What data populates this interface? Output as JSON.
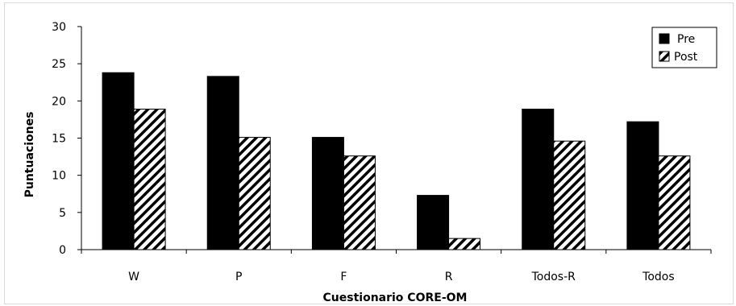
{
  "chart_data": {
    "type": "bar",
    "title": "",
    "xlabel": "Cuestionario CORE-OM",
    "ylabel": "Puntuaciones",
    "ylim": [
      0,
      30
    ],
    "yticks": [
      "0",
      "5",
      "10",
      "15",
      "20",
      "25",
      "30"
    ],
    "categories": [
      "W",
      "P",
      "F",
      "R",
      "Todos-R",
      "Todos"
    ],
    "series": [
      {
        "name": "Pre",
        "values": [
          23.8,
          23.3,
          15.1,
          7.3,
          18.9,
          17.2
        ],
        "fill": "solid",
        "color": "#000000"
      },
      {
        "name": "Post",
        "values": [
          18.9,
          15.1,
          12.6,
          1.5,
          14.6,
          12.6
        ],
        "fill": "hatched",
        "color": "#000000"
      }
    ],
    "legend": {
      "position": "top-right"
    },
    "grid": false
  }
}
